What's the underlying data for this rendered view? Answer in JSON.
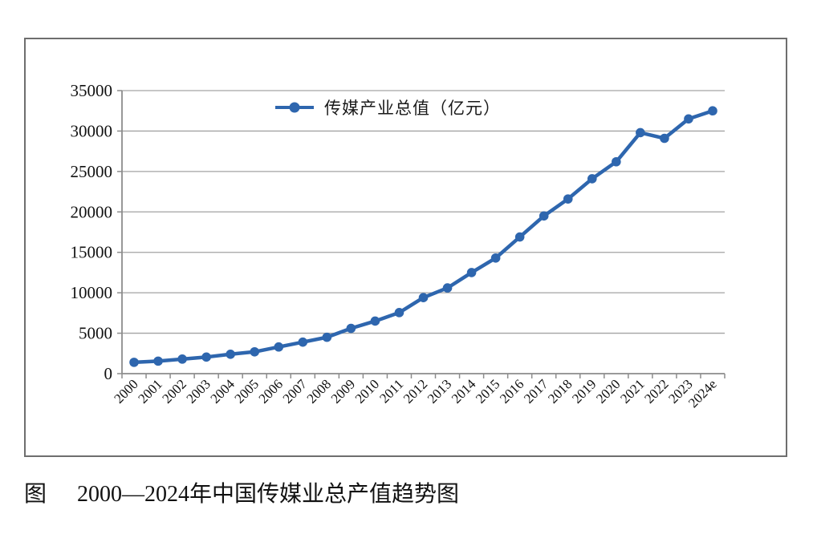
{
  "figure": {
    "caption_prefix": "图",
    "caption_text": "2000—2024年中国传媒业总产值趋势图"
  },
  "chart_data": {
    "type": "line",
    "title": "",
    "legend": [
      "传媒产业总值（亿元）"
    ],
    "legend_position": "top-center-inside",
    "categories": [
      "2000",
      "2001",
      "2002",
      "2003",
      "2004",
      "2005",
      "2006",
      "2007",
      "2008",
      "2009",
      "2010",
      "2011",
      "2012",
      "2013",
      "2014",
      "2015",
      "2016",
      "2017",
      "2018",
      "2019",
      "2020",
      "2021",
      "2022",
      "2023",
      "2024e"
    ],
    "series": [
      {
        "name": "传媒产业总值（亿元）",
        "values": [
          1400,
          1550,
          1800,
          2050,
          2400,
          2700,
          3300,
          3900,
          4500,
          5600,
          6500,
          7550,
          9400,
          10600,
          12500,
          14300,
          16900,
          19500,
          21600,
          24100,
          26200,
          29800,
          29100,
          31500,
          32500
        ]
      }
    ],
    "xlabel": "",
    "ylabel": "",
    "ylim": [
      0,
      35000
    ],
    "yticks": [
      0,
      5000,
      10000,
      15000,
      20000,
      25000,
      30000,
      35000
    ],
    "ytick_labels": [
      "0",
      "5000",
      "10000",
      "15000",
      "20000",
      "25000",
      "30000",
      "35000"
    ],
    "grid": "horizontal",
    "colors": {
      "line": "#2E66AE",
      "marker": "#2E66AE",
      "grid": "#a3a3a3",
      "axis": "#8c8c8c",
      "text": "#111111",
      "border": "#6e6e6e",
      "background": "#ffffff"
    }
  }
}
